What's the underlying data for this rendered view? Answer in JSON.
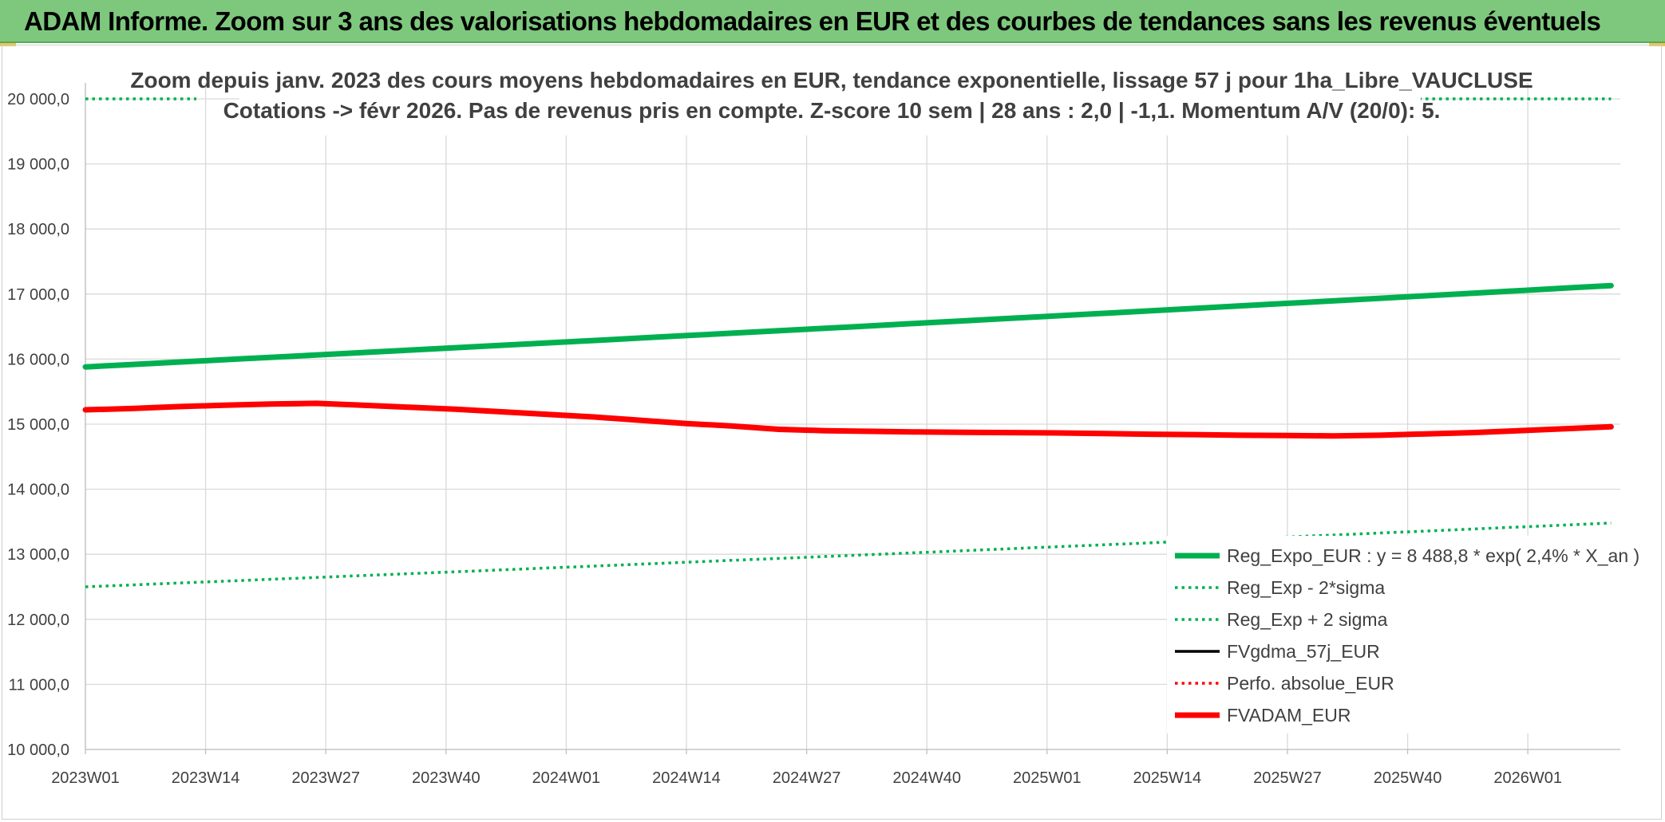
{
  "banner": {
    "title": "ADAM Informe. Zoom sur 3 ans des valorisations hebdomadaires en EUR et des courbes de tendances sans les revenus éventuels"
  },
  "chart_data": {
    "type": "line",
    "title_lines": [
      "Zoom depuis janv. 2023 des cours moyens hebdomadaires en EUR, tendance exponentielle, lissage 57 j pour 1ha_Libre_VAUCLUSE",
      "Cotations -> févr 2026. Pas de revenus pris en compte. Z-score 10 sem | 28 ans : 2,0 | -1,1. Momentum A/V (20/0): 5."
    ],
    "xlabel": "",
    "ylabel": "",
    "ylim": [
      10000,
      20000
    ],
    "y_ticks": [
      "10 000,0",
      "11 000,0",
      "12 000,0",
      "13 000,0",
      "14 000,0",
      "15 000,0",
      "16 000,0",
      "17 000,0",
      "18 000,0",
      "19 000,0",
      "20 000,0"
    ],
    "y_tick_values": [
      10000,
      11000,
      12000,
      13000,
      14000,
      15000,
      16000,
      17000,
      18000,
      19000,
      20000
    ],
    "x_ticks": [
      "2023W01",
      "2023W14",
      "2023W27",
      "2023W40",
      "2024W01",
      "2024W14",
      "2024W27",
      "2024W40",
      "2025W01",
      "2025W14",
      "2025W27",
      "2025W40",
      "2026W01"
    ],
    "x_range_weeks": 165,
    "grid": true,
    "legend_placement": "bottom-right",
    "series": [
      {
        "name": "Reg_Expo_EUR : y = 8 488,8 * exp( 2,4% *  X_an )",
        "color": "#00b050",
        "style": "solid-thick",
        "x": [
          0,
          165
        ],
        "values": [
          15880,
          17130
        ]
      },
      {
        "name": "Reg_Exp - 2*sigma",
        "color": "#00b050",
        "style": "dotted",
        "x": [
          0,
          165
        ],
        "values": [
          12500,
          13480
        ]
      },
      {
        "name": "Reg_Exp + 2 sigma",
        "color": "#00b050",
        "style": "dotted",
        "x": [
          0,
          165
        ],
        "values": [
          20000,
          20000
        ]
      },
      {
        "name": "FVgdma_57j_EUR",
        "color": "#000000",
        "style": "solid",
        "x": [
          0,
          5,
          10,
          15,
          20,
          25,
          30,
          35,
          40,
          45,
          50,
          55,
          60,
          65,
          70,
          75,
          80,
          85,
          90,
          95,
          100,
          105,
          110,
          115,
          120,
          125,
          130,
          135,
          140,
          145,
          150,
          155,
          160,
          165
        ],
        "values": [
          15220,
          15240,
          15270,
          15280,
          15290,
          15300,
          15280,
          15260,
          15230,
          15190,
          15150,
          15110,
          15060,
          15010,
          14970,
          14930,
          14900,
          14890,
          14880,
          14875,
          14870,
          14865,
          14855,
          14845,
          14840,
          14830,
          14825,
          14820,
          14830,
          14850,
          14870,
          14900,
          14930,
          14960
        ]
      },
      {
        "name": "Perfo. absolue_EUR",
        "color": "#ff0000",
        "style": "dotted",
        "x": [
          0,
          5,
          10,
          15,
          20,
          25,
          30,
          35,
          40,
          45,
          50,
          55,
          60,
          65,
          70,
          75,
          80,
          85,
          90,
          95,
          100,
          105,
          110,
          115,
          120,
          125,
          130,
          135,
          140,
          145,
          150,
          155,
          160,
          165
        ],
        "values": [
          15220,
          15240,
          15270,
          15290,
          15310,
          15320,
          15290,
          15260,
          15230,
          15190,
          15150,
          15110,
          15060,
          15010,
          14970,
          14920,
          14900,
          14890,
          14880,
          14875,
          14870,
          14865,
          14855,
          14845,
          14840,
          14830,
          14825,
          14820,
          14830,
          14850,
          14870,
          14900,
          14930,
          14960
        ]
      },
      {
        "name": "FVADAM_EUR",
        "color": "#ff0000",
        "style": "solid-thick",
        "x": [
          0,
          5,
          10,
          15,
          20,
          25,
          30,
          35,
          40,
          45,
          50,
          55,
          60,
          65,
          70,
          75,
          80,
          85,
          90,
          95,
          100,
          105,
          110,
          115,
          120,
          125,
          130,
          135,
          140,
          145,
          150,
          155,
          160,
          165
        ],
        "values": [
          15220,
          15240,
          15270,
          15290,
          15310,
          15320,
          15290,
          15260,
          15230,
          15190,
          15150,
          15110,
          15060,
          15010,
          14970,
          14920,
          14900,
          14890,
          14880,
          14875,
          14870,
          14865,
          14855,
          14845,
          14840,
          14830,
          14825,
          14820,
          14830,
          14850,
          14870,
          14900,
          14930,
          14960
        ]
      }
    ]
  }
}
